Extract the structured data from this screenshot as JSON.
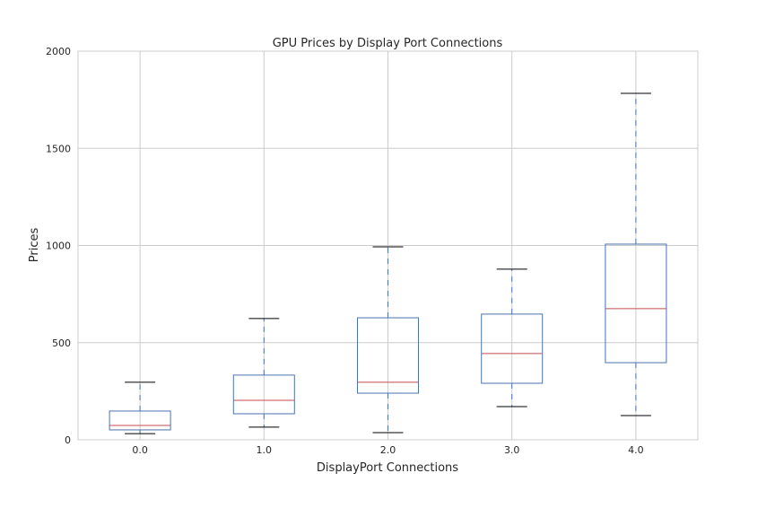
{
  "chart_data": {
    "type": "box",
    "title": "GPU Prices by Display Port Connections",
    "xlabel": "DisplayPort Connections",
    "ylabel": "Prices",
    "ylim": [
      0,
      2000
    ],
    "yticks": [
      "0",
      "500",
      "1000",
      "1500",
      "2000"
    ],
    "yticks_values": [
      0,
      500,
      1000,
      1500,
      2000
    ],
    "categories": [
      "0.0",
      "1.0",
      "2.0",
      "3.0",
      "4.0"
    ],
    "boxes": [
      {
        "whislo": 32,
        "q1": 51,
        "med": 74,
        "q3": 148,
        "whishi": 296
      },
      {
        "whislo": 65,
        "q1": 134,
        "med": 203,
        "q3": 333,
        "whishi": 624
      },
      {
        "whislo": 37,
        "q1": 240,
        "med": 296,
        "q3": 628,
        "whishi": 993
      },
      {
        "whislo": 171,
        "q1": 291,
        "med": 444,
        "q3": 647,
        "whishi": 878
      },
      {
        "whislo": 125,
        "q1": 397,
        "med": 675,
        "q3": 1007,
        "whishi": 1783
      }
    ],
    "grid": true,
    "colors": {
      "box": "#4c72b0",
      "median": "#c44e52",
      "cap": "#000000",
      "grid": "#cccccc"
    }
  }
}
